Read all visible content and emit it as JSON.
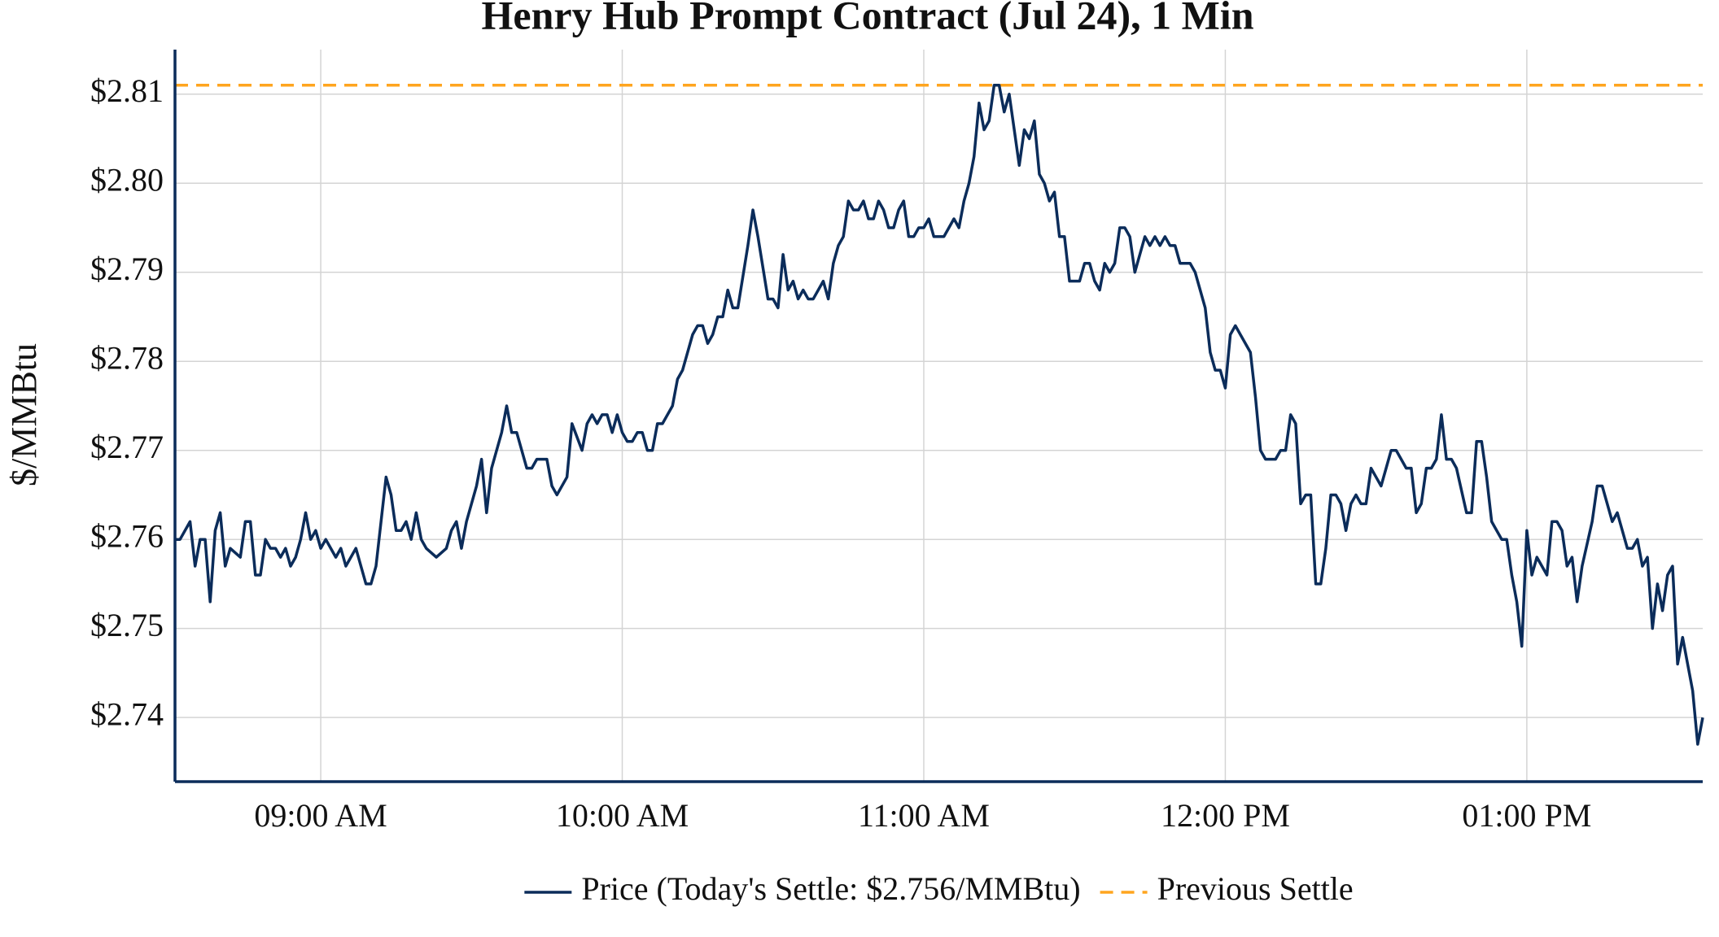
{
  "chart_data": {
    "type": "line",
    "title": "Henry Hub Prompt Contract (Jul 24), 1 Min",
    "y_label": "$/MMBtu",
    "x": [
      "08:31",
      "08:32",
      "08:34",
      "08:35",
      "08:36",
      "08:37",
      "08:38",
      "08:39",
      "08:40",
      "08:41",
      "08:42",
      "08:44",
      "08:45",
      "08:46",
      "08:47",
      "08:48",
      "08:49",
      "08:50",
      "08:51",
      "08:52",
      "08:53",
      "08:54",
      "08:55",
      "08:56",
      "08:57",
      "08:58",
      "08:59",
      "09:00",
      "09:01",
      "09:02",
      "09:03",
      "09:04",
      "09:05",
      "09:07",
      "09:09",
      "09:10",
      "09:11",
      "09:12",
      "09:13",
      "09:14",
      "09:15",
      "09:16",
      "09:17",
      "09:18",
      "09:19",
      "09:20",
      "09:21",
      "09:23",
      "09:25",
      "09:26",
      "09:27",
      "09:28",
      "09:29",
      "09:31",
      "09:32",
      "09:33",
      "09:34",
      "09:36",
      "09:37",
      "09:38",
      "09:39",
      "09:41",
      "09:42",
      "09:43",
      "09:45",
      "09:46",
      "09:47",
      "09:49",
      "09:50",
      "09:52",
      "09:53",
      "09:54",
      "09:55",
      "09:56",
      "09:57",
      "09:58",
      "09:59",
      "10:00",
      "10:01",
      "10:02",
      "10:03",
      "10:04",
      "10:05",
      "10:06",
      "10:07",
      "10:08",
      "10:10",
      "10:11",
      "10:12",
      "10:14",
      "10:15",
      "10:16",
      "10:17",
      "10:18",
      "10:19",
      "10:20",
      "10:21",
      "10:22",
      "10:23",
      "10:25",
      "10:26",
      "10:27",
      "10:29",
      "10:30",
      "10:31",
      "10:32",
      "10:33",
      "10:34",
      "10:35",
      "10:36",
      "10:37",
      "10:38",
      "10:40",
      "10:41",
      "10:42",
      "10:43",
      "10:44",
      "10:45",
      "10:46",
      "10:47",
      "10:48",
      "10:49",
      "10:50",
      "10:51",
      "10:52",
      "10:53",
      "10:54",
      "10:55",
      "10:56",
      "10:57",
      "10:58",
      "10:59",
      "11:00",
      "11:01",
      "11:02",
      "11:04",
      "11:05",
      "11:06",
      "11:07",
      "11:08",
      "11:09",
      "11:10",
      "11:11",
      "11:12",
      "11:13",
      "11:14",
      "11:15",
      "11:16",
      "11:17",
      "11:18",
      "11:19",
      "11:20",
      "11:21",
      "11:22",
      "11:23",
      "11:24",
      "11:25",
      "11:26",
      "11:27",
      "11:28",
      "11:29",
      "11:31",
      "11:32",
      "11:33",
      "11:34",
      "11:35",
      "11:36",
      "11:37",
      "11:38",
      "11:39",
      "11:40",
      "11:41",
      "11:42",
      "11:43",
      "11:44",
      "11:45",
      "11:46",
      "11:47",
      "11:48",
      "11:49",
      "11:50",
      "11:51",
      "11:53",
      "11:54",
      "11:55",
      "11:56",
      "11:57",
      "11:58",
      "11:59",
      "12:00",
      "12:01",
      "12:02",
      "12:03",
      "12:05",
      "12:06",
      "12:07",
      "12:08",
      "12:09",
      "12:10",
      "12:11",
      "12:12",
      "12:13",
      "12:14",
      "12:15",
      "12:16",
      "12:17",
      "12:18",
      "12:19",
      "12:20",
      "12:21",
      "12:22",
      "12:23",
      "12:24",
      "12:25",
      "12:26",
      "12:27",
      "12:28",
      "12:29",
      "12:30",
      "12:31",
      "12:32",
      "12:33",
      "12:34",
      "12:35",
      "12:36",
      "12:37",
      "12:38",
      "12:39",
      "12:40",
      "12:41",
      "12:42",
      "12:43",
      "12:44",
      "12:45",
      "12:46",
      "12:48",
      "12:49",
      "12:50",
      "12:51",
      "12:52",
      "12:53",
      "12:54",
      "12:55",
      "12:56",
      "12:57",
      "12:58",
      "12:59",
      "13:00",
      "13:01",
      "13:02",
      "13:03",
      "13:04",
      "13:05",
      "13:06",
      "13:07",
      "13:08",
      "13:09",
      "13:10",
      "13:11",
      "13:13",
      "13:14",
      "13:15",
      "13:16",
      "13:17",
      "13:18",
      "13:19",
      "13:20",
      "13:21",
      "13:22",
      "13:23",
      "13:24",
      "13:25",
      "13:26",
      "13:27",
      "13:28",
      "13:29",
      "13:30",
      "13:31",
      "13:33",
      "13:34",
      "13:35"
    ],
    "series": [
      {
        "name": "Price (Today's Settle: $2.756/MMBtu)",
        "color": "#0b2c5a",
        "values": [
          2.76,
          2.76,
          2.762,
          2.757,
          2.76,
          2.76,
          2.753,
          2.761,
          2.763,
          2.757,
          2.759,
          2.758,
          2.762,
          2.762,
          2.756,
          2.756,
          2.76,
          2.759,
          2.759,
          2.758,
          2.759,
          2.757,
          2.758,
          2.76,
          2.763,
          2.76,
          2.761,
          2.759,
          2.76,
          2.759,
          2.758,
          2.759,
          2.757,
          2.759,
          2.755,
          2.755,
          2.757,
          2.762,
          2.767,
          2.765,
          2.761,
          2.761,
          2.762,
          2.76,
          2.763,
          2.76,
          2.759,
          2.758,
          2.759,
          2.761,
          2.762,
          2.759,
          2.762,
          2.766,
          2.769,
          2.763,
          2.768,
          2.772,
          2.775,
          2.772,
          2.772,
          2.768,
          2.768,
          2.769,
          2.769,
          2.766,
          2.765,
          2.767,
          2.773,
          2.77,
          2.773,
          2.774,
          2.773,
          2.774,
          2.774,
          2.772,
          2.774,
          2.772,
          2.771,
          2.771,
          2.772,
          2.772,
          2.77,
          2.77,
          2.773,
          2.773,
          2.775,
          2.778,
          2.779,
          2.783,
          2.784,
          2.784,
          2.782,
          2.783,
          2.785,
          2.785,
          2.788,
          2.786,
          2.786,
          2.793,
          2.797,
          2.794,
          2.787,
          2.787,
          2.786,
          2.792,
          2.788,
          2.789,
          2.787,
          2.788,
          2.787,
          2.787,
          2.789,
          2.787,
          2.791,
          2.793,
          2.794,
          2.798,
          2.797,
          2.797,
          2.798,
          2.796,
          2.796,
          2.798,
          2.797,
          2.795,
          2.795,
          2.797,
          2.798,
          2.794,
          2.794,
          2.795,
          2.795,
          2.796,
          2.794,
          2.794,
          2.795,
          2.796,
          2.795,
          2.798,
          2.8,
          2.803,
          2.809,
          2.806,
          2.807,
          2.811,
          2.811,
          2.808,
          2.81,
          2.806,
          2.802,
          2.806,
          2.805,
          2.807,
          2.801,
          2.8,
          2.798,
          2.799,
          2.794,
          2.794,
          2.789,
          2.789,
          2.791,
          2.791,
          2.789,
          2.788,
          2.791,
          2.79,
          2.791,
          2.795,
          2.795,
          2.794,
          2.79,
          2.792,
          2.794,
          2.793,
          2.794,
          2.793,
          2.794,
          2.793,
          2.793,
          2.791,
          2.791,
          2.79,
          2.788,
          2.786,
          2.781,
          2.779,
          2.779,
          2.777,
          2.783,
          2.784,
          2.783,
          2.781,
          2.776,
          2.77,
          2.769,
          2.769,
          2.769,
          2.77,
          2.77,
          2.774,
          2.773,
          2.764,
          2.765,
          2.765,
          2.755,
          2.755,
          2.759,
          2.765,
          2.765,
          2.764,
          2.761,
          2.764,
          2.765,
          2.764,
          2.764,
          2.768,
          2.767,
          2.766,
          2.768,
          2.77,
          2.77,
          2.769,
          2.768,
          2.768,
          2.763,
          2.764,
          2.768,
          2.768,
          2.769,
          2.774,
          2.769,
          2.769,
          2.768,
          2.763,
          2.763,
          2.771,
          2.771,
          2.767,
          2.762,
          2.761,
          2.76,
          2.76,
          2.756,
          2.753,
          2.748,
          2.761,
          2.756,
          2.758,
          2.757,
          2.756,
          2.762,
          2.762,
          2.761,
          2.757,
          2.758,
          2.753,
          2.757,
          2.762,
          2.766,
          2.766,
          2.764,
          2.762,
          2.763,
          2.761,
          2.759,
          2.759,
          2.76,
          2.757,
          2.758,
          2.75,
          2.755,
          2.752,
          2.756,
          2.757,
          2.746,
          2.749,
          2.743,
          2.737,
          2.74
        ]
      }
    ],
    "hlines": [
      {
        "name": "Previous Settle",
        "value": 2.811,
        "color": "#ffa51f",
        "dashed": true
      }
    ],
    "xlim": [
      "08:31",
      "13:35"
    ],
    "xticks": [
      {
        "value": "09:00",
        "label": "09:00 AM"
      },
      {
        "value": "10:00",
        "label": "10:00 AM"
      },
      {
        "value": "11:00",
        "label": "11:00 AM"
      },
      {
        "value": "12:00",
        "label": "12:00 PM"
      },
      {
        "value": "13:00",
        "label": "01:00 PM"
      }
    ],
    "ylim": [
      2.7328,
      2.815
    ],
    "yticks": [
      {
        "value": 2.74,
        "label": "$2.74"
      },
      {
        "value": 2.75,
        "label": "$2.75"
      },
      {
        "value": 2.76,
        "label": "$2.76"
      },
      {
        "value": 2.77,
        "label": "$2.77"
      },
      {
        "value": 2.78,
        "label": "$2.78"
      },
      {
        "value": 2.79,
        "label": "$2.79"
      },
      {
        "value": 2.8,
        "label": "$2.80"
      },
      {
        "value": 2.81,
        "label": "$2.81"
      }
    ],
    "grid": true,
    "legend": "bottom"
  }
}
